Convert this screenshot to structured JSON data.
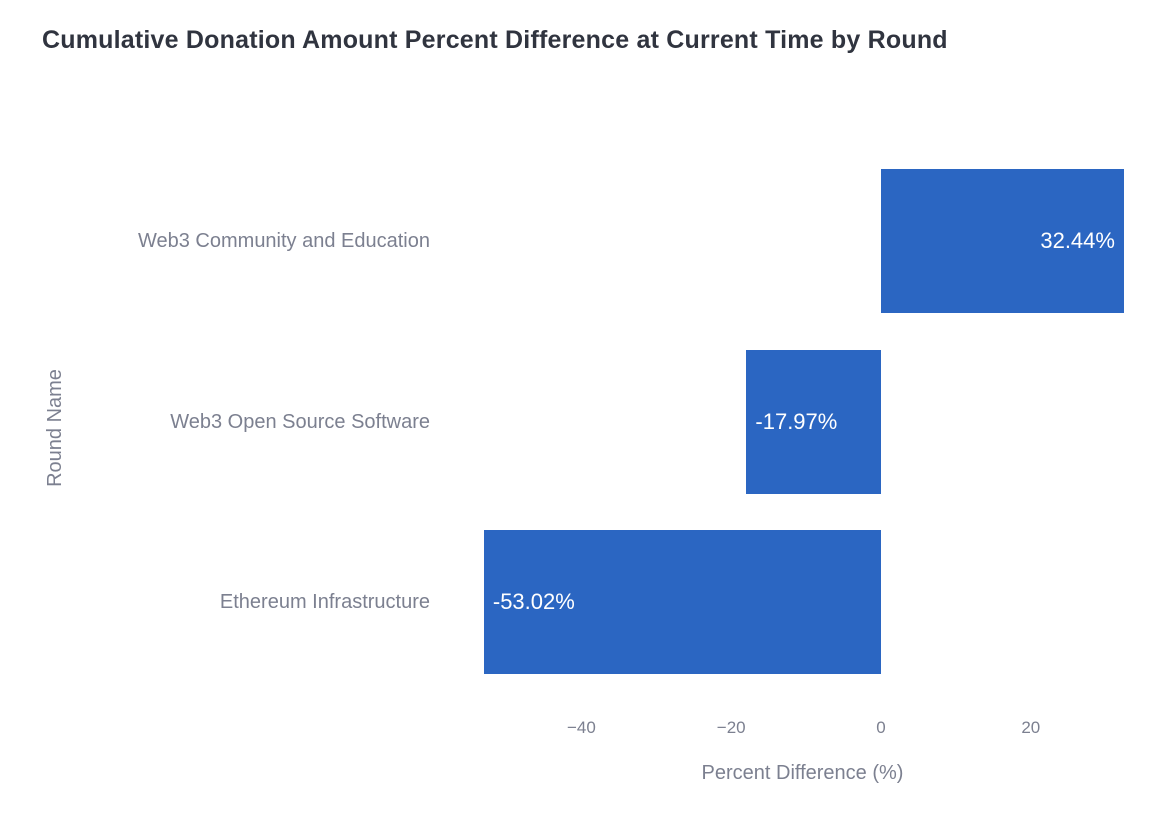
{
  "chart_data": {
    "type": "bar",
    "orientation": "horizontal",
    "title": "Cumulative Donation Amount Percent Difference at Current Time by Round",
    "xlabel": "Percent Difference (%)",
    "ylabel": "Round Name",
    "categories": [
      "Web3 Community and Education",
      "Web3 Open Source Software",
      "Ethereum Infrastructure"
    ],
    "values": [
      32.44,
      -17.97,
      -53.02
    ],
    "bar_labels": [
      "32.44%",
      "-17.97%",
      "-53.02%"
    ],
    "x_ticks": {
      "values": [
        -40,
        -20,
        0,
        20
      ],
      "labels": [
        "−40",
        "−20",
        "0",
        "20"
      ]
    },
    "xlim": [
      -55.5,
      32.5
    ],
    "grid": false,
    "legend": "none",
    "colors": {
      "bar": "#2b66c2",
      "title_text": "#30343f",
      "axis_text": "#7c8090",
      "bar_label_text": "#ffffff",
      "background": "#ffffff"
    }
  }
}
